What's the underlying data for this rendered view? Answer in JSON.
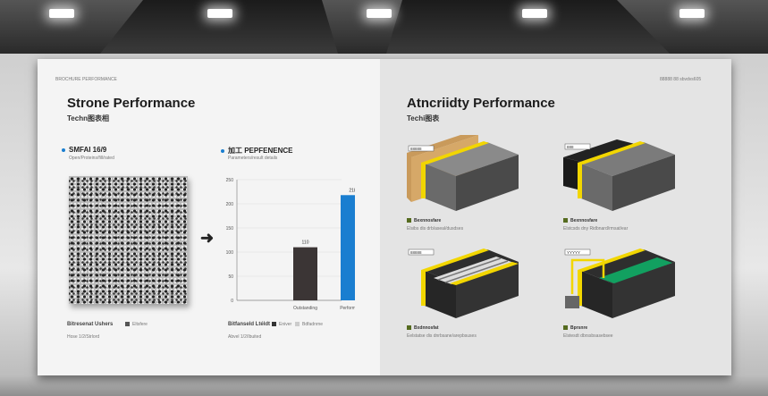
{
  "left_panel": {
    "header_small": "BROCHURE PERFORMANCE",
    "title": "Strone Performance",
    "subtitle": "Techn图表相",
    "section1": {
      "title": "SMFAI 16/9",
      "caption": "Open/Proteins/fill/rated",
      "legend_label": "Bitresenat Ushers",
      "legend_item": "Eltsfere",
      "note": "Hose 1/2/Strlord"
    },
    "section2": {
      "title": "加工 PEPFENENCE",
      "caption": "Parameters/result details",
      "legend_label": "Bitfanseld Ltéldt",
      "legend_items": [
        "Eniver",
        "Bdfadnrne"
      ],
      "note": "Abvel 1/2/Ibuited"
    },
    "arrow_icon": "arrow-right-icon"
  },
  "chart_data": {
    "type": "bar",
    "categories": [
      "Outstanding",
      "Performance"
    ],
    "values": [
      110,
      218
    ],
    "value_labels": [
      "110",
      "218"
    ],
    "yticks": [
      "0",
      "50",
      "100",
      "150",
      "200",
      "250"
    ],
    "ylim": [
      0,
      250
    ],
    "colors": [
      "#3b3535",
      "#1a7ed0"
    ],
    "grid": true
  },
  "right_panel": {
    "header_small": "88888 88 sbvdvs605",
    "title": "Atncriidty Performance",
    "subtitle": "Techi图表",
    "diagrams": [
      {
        "label": "Bexnnosfare",
        "caption": "Elsibs dis drb/aseal/dusdses",
        "callout": "88888"
      },
      {
        "label": "Bexnnosfare",
        "caption": "Elstcsds dny Ridbnard/rmsat/ear",
        "callout": "888"
      },
      {
        "label": "Bxdnnosfat",
        "caption": "Eelstatse dis dnrbsane/arepbsuses",
        "callout": "88888"
      },
      {
        "label": "Bprsnre",
        "caption": "Elstesdt dbrssbsasebsee",
        "callout": "YYYYY"
      }
    ]
  },
  "accent_colors": {
    "yellow": "#f2d600",
    "green": "#0d8a4a",
    "blue": "#1a7ed0"
  }
}
